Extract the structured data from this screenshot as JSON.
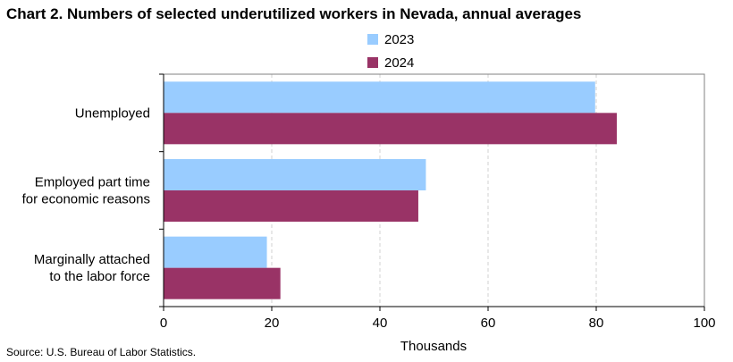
{
  "chart_data": {
    "type": "bar",
    "orientation": "horizontal",
    "title": "Chart 2. Numbers of selected underutilized workers in Nevada, annual averages",
    "categories": [
      [
        "Unemployed"
      ],
      [
        "Employed part time",
        "for economic reasons"
      ],
      [
        "Marginally attached",
        "to the labor force"
      ]
    ],
    "series": [
      {
        "name": "2023",
        "color": "#99ccff",
        "values": [
          79.8,
          48.5,
          19.1
        ]
      },
      {
        "name": "2024",
        "color": "#993366",
        "values": [
          83.8,
          47.1,
          21.6
        ]
      }
    ],
    "xlabel": "Thousands",
    "xlim": [
      0,
      100
    ],
    "xticks": [
      0,
      20,
      40,
      60,
      80,
      100
    ],
    "grid": "vertical dashed",
    "legend": "top-center"
  },
  "source": "Source: U.S. Bureau  of Labor Statistics."
}
